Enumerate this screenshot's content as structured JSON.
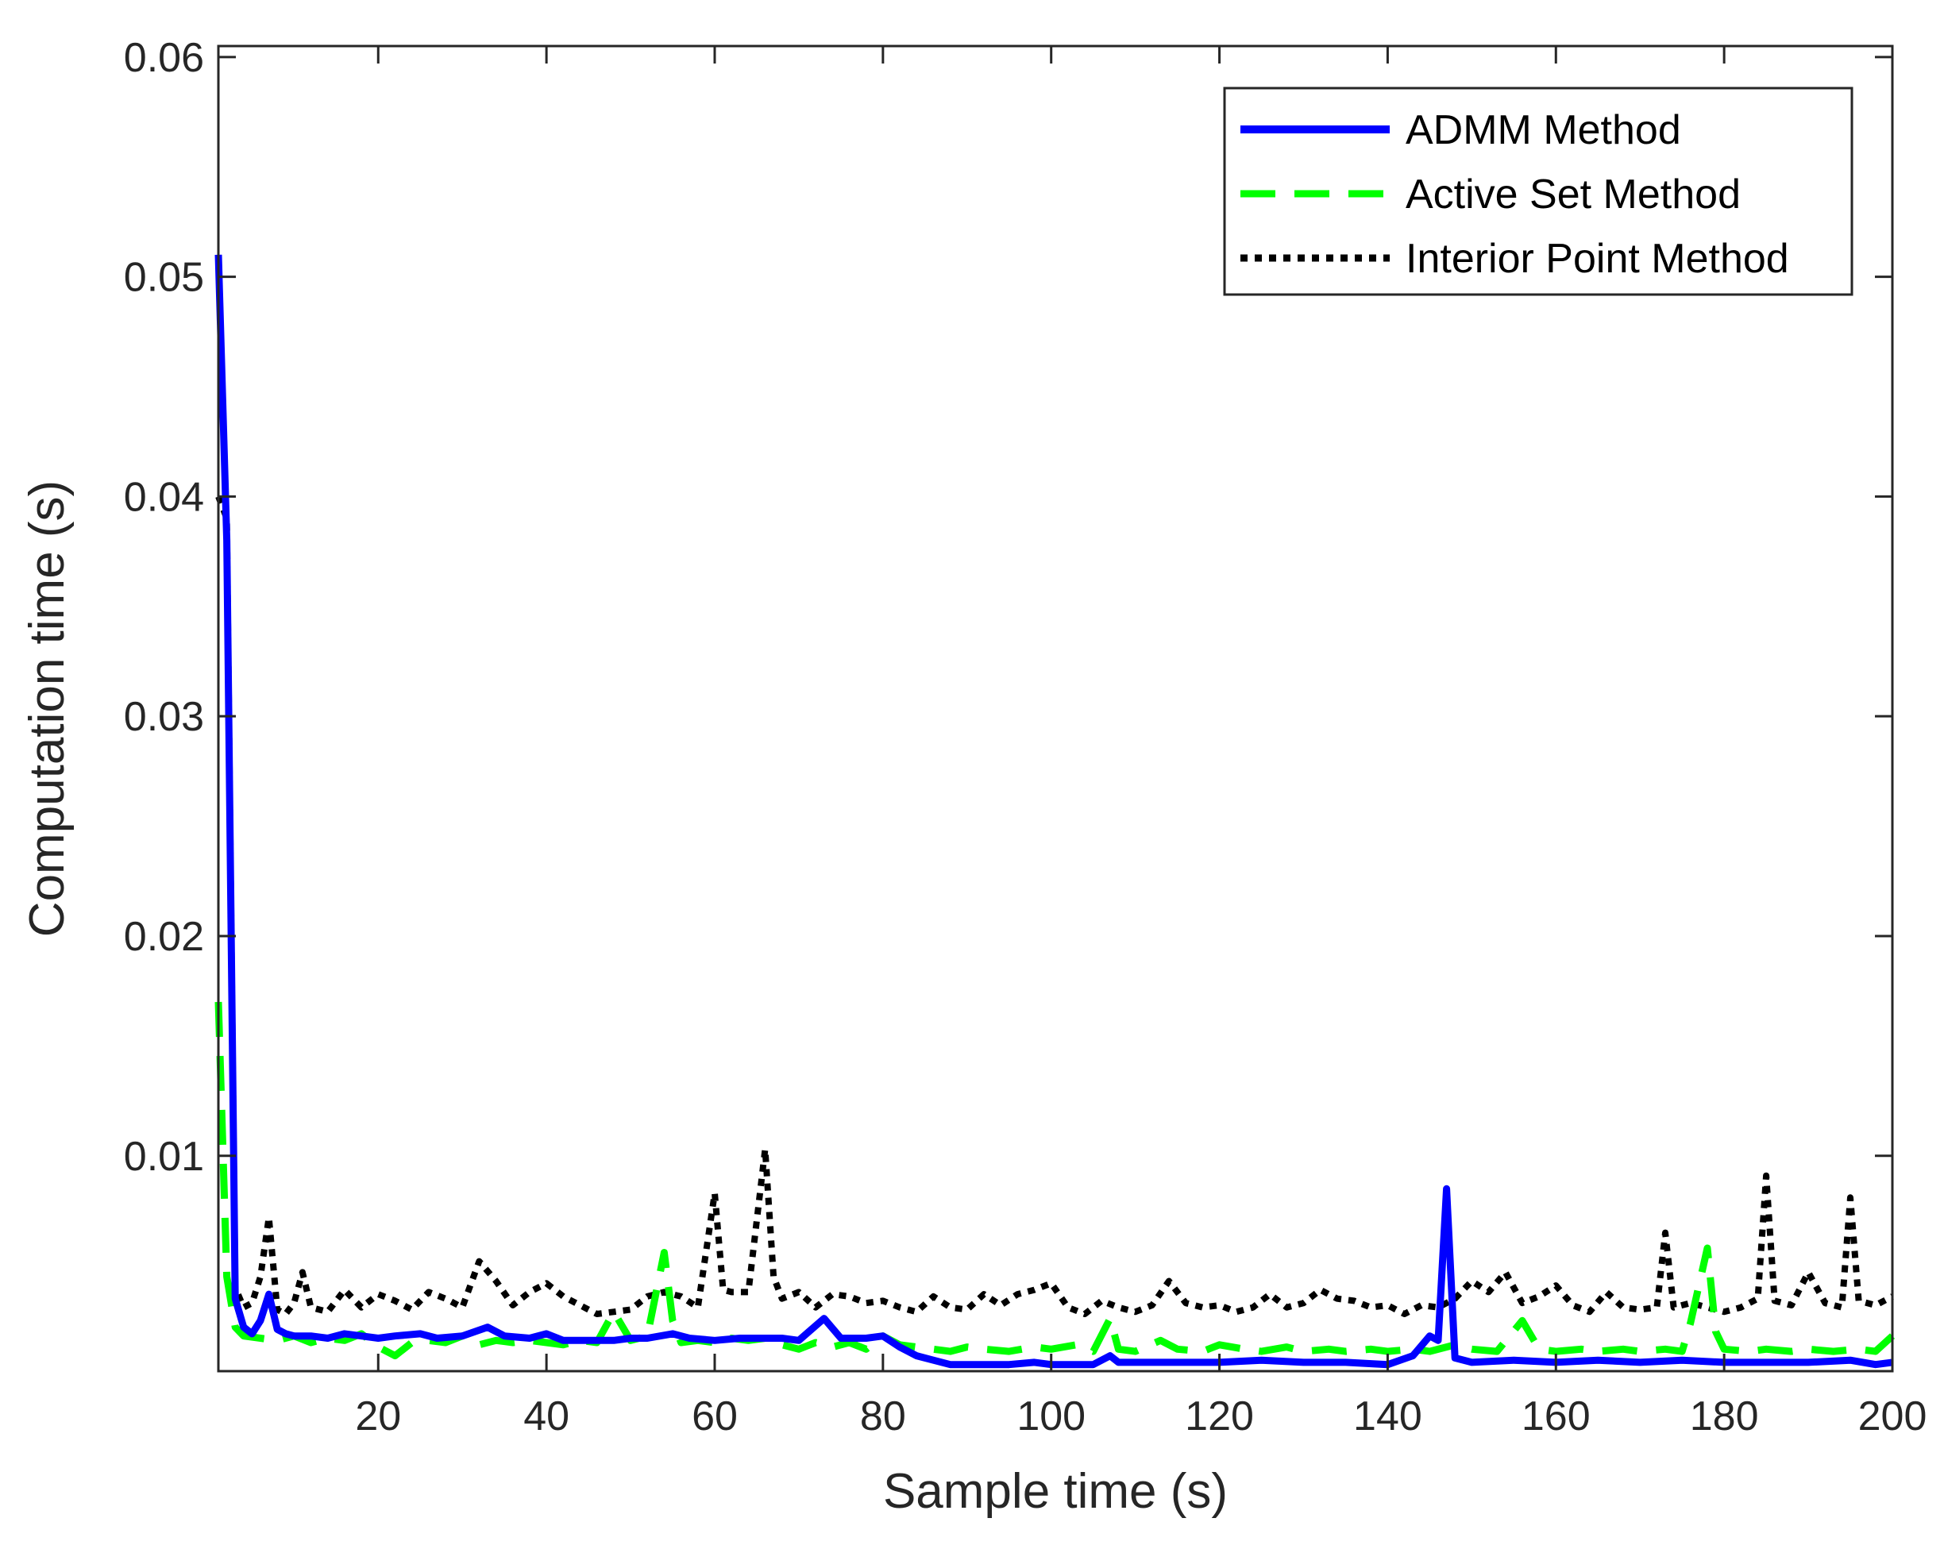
{
  "chart_data": {
    "type": "line",
    "title": "",
    "xlabel": "Sample time (s)",
    "ylabel": "Computation time (s)",
    "xlim": [
      1,
      200
    ],
    "ylim": [
      0.0002,
      0.0605
    ],
    "xticks": [
      20,
      40,
      60,
      80,
      100,
      120,
      140,
      160,
      180,
      200
    ],
    "yticks": [
      0.01,
      0.02,
      0.03,
      0.04,
      0.05,
      0.06
    ],
    "xtick_labels": [
      "20",
      "40",
      "60",
      "80",
      "100",
      "120",
      "140",
      "160",
      "180",
      "200"
    ],
    "ytick_labels": [
      "0.01",
      "0.02",
      "0.03",
      "0.04",
      "0.05",
      "0.06"
    ],
    "grid": false,
    "legend_position": "top-right",
    "series": [
      {
        "name": "ADMM Method",
        "color": "#0000ff",
        "style": "solid",
        "points": [
          [
            1,
            0.051
          ],
          [
            2,
            0.038
          ],
          [
            3,
            0.0035
          ],
          [
            4,
            0.0022
          ],
          [
            5,
            0.0019
          ],
          [
            6,
            0.0025
          ],
          [
            7,
            0.0037
          ],
          [
            8,
            0.0021
          ],
          [
            9,
            0.0019
          ],
          [
            10,
            0.0018
          ],
          [
            12,
            0.0018
          ],
          [
            14,
            0.0017
          ],
          [
            16,
            0.0019
          ],
          [
            18,
            0.0018
          ],
          [
            20,
            0.0017
          ],
          [
            22,
            0.0018
          ],
          [
            25,
            0.0019
          ],
          [
            27,
            0.0017
          ],
          [
            30,
            0.0018
          ],
          [
            33,
            0.0022
          ],
          [
            35,
            0.0018
          ],
          [
            38,
            0.0017
          ],
          [
            40,
            0.0019
          ],
          [
            42,
            0.0016
          ],
          [
            45,
            0.0016
          ],
          [
            48,
            0.0016
          ],
          [
            50,
            0.0017
          ],
          [
            52,
            0.0017
          ],
          [
            55,
            0.0019
          ],
          [
            57,
            0.0017
          ],
          [
            60,
            0.0016
          ],
          [
            63,
            0.0017
          ],
          [
            66,
            0.0017
          ],
          [
            68,
            0.0017
          ],
          [
            70,
            0.0016
          ],
          [
            73,
            0.0026
          ],
          [
            75,
            0.0017
          ],
          [
            78,
            0.0017
          ],
          [
            80,
            0.0018
          ],
          [
            82,
            0.0013
          ],
          [
            84,
            0.0009
          ],
          [
            86,
            0.0007
          ],
          [
            88,
            0.0005
          ],
          [
            90,
            0.0005
          ],
          [
            95,
            0.0005
          ],
          [
            98,
            0.0006
          ],
          [
            100,
            0.0005
          ],
          [
            105,
            0.0005
          ],
          [
            107,
            0.0009
          ],
          [
            108,
            0.0006
          ],
          [
            110,
            0.0006
          ],
          [
            115,
            0.0006
          ],
          [
            120,
            0.0006
          ],
          [
            125,
            0.0007
          ],
          [
            130,
            0.0006
          ],
          [
            135,
            0.0006
          ],
          [
            140,
            0.0005
          ],
          [
            143,
            0.0009
          ],
          [
            145,
            0.0018
          ],
          [
            146,
            0.0016
          ],
          [
            147,
            0.0085
          ],
          [
            148,
            0.0008
          ],
          [
            150,
            0.0006
          ],
          [
            155,
            0.0007
          ],
          [
            160,
            0.0006
          ],
          [
            165,
            0.0007
          ],
          [
            170,
            0.0006
          ],
          [
            175,
            0.0007
          ],
          [
            180,
            0.0006
          ],
          [
            185,
            0.0006
          ],
          [
            190,
            0.0006
          ],
          [
            195,
            0.0007
          ],
          [
            198,
            0.0005
          ],
          [
            200,
            0.0006
          ]
        ]
      },
      {
        "name": "Active Set Method",
        "color": "#00ff00",
        "style": "dashed",
        "points": [
          [
            1,
            0.017
          ],
          [
            2,
            0.0045
          ],
          [
            3,
            0.0022
          ],
          [
            4,
            0.0018
          ],
          [
            6,
            0.0017
          ],
          [
            8,
            0.0016
          ],
          [
            10,
            0.0018
          ],
          [
            12,
            0.0015
          ],
          [
            14,
            0.0017
          ],
          [
            16,
            0.0016
          ],
          [
            18,
            0.0019
          ],
          [
            20,
            0.0013
          ],
          [
            22,
            0.0009
          ],
          [
            24,
            0.0015
          ],
          [
            26,
            0.0016
          ],
          [
            28,
            0.0015
          ],
          [
            30,
            0.0018
          ],
          [
            32,
            0.0014
          ],
          [
            34,
            0.0016
          ],
          [
            36,
            0.0015
          ],
          [
            38,
            0.0016
          ],
          [
            40,
            0.0015
          ],
          [
            42,
            0.0014
          ],
          [
            44,
            0.0016
          ],
          [
            46,
            0.0015
          ],
          [
            48,
            0.0029
          ],
          [
            50,
            0.0016
          ],
          [
            52,
            0.0018
          ],
          [
            54,
            0.0056
          ],
          [
            55,
            0.0025
          ],
          [
            56,
            0.0015
          ],
          [
            58,
            0.0016
          ],
          [
            60,
            0.0015
          ],
          [
            62,
            0.0017
          ],
          [
            64,
            0.0016
          ],
          [
            66,
            0.0017
          ],
          [
            68,
            0.0014
          ],
          [
            70,
            0.0012
          ],
          [
            72,
            0.0015
          ],
          [
            74,
            0.0013
          ],
          [
            76,
            0.0015
          ],
          [
            78,
            0.0012
          ],
          [
            80,
            0.0018
          ],
          [
            82,
            0.0014
          ],
          [
            84,
            0.0013
          ],
          [
            86,
            0.0012
          ],
          [
            88,
            0.0011
          ],
          [
            90,
            0.0013
          ],
          [
            92,
            0.0012
          ],
          [
            95,
            0.0011
          ],
          [
            98,
            0.0013
          ],
          [
            100,
            0.0012
          ],
          [
            103,
            0.0014
          ],
          [
            105,
            0.0011
          ],
          [
            107,
            0.0026
          ],
          [
            108,
            0.0012
          ],
          [
            110,
            0.0011
          ],
          [
            113,
            0.0016
          ],
          [
            115,
            0.0012
          ],
          [
            118,
            0.0011
          ],
          [
            120,
            0.0014
          ],
          [
            123,
            0.0012
          ],
          [
            125,
            0.0011
          ],
          [
            128,
            0.0013
          ],
          [
            130,
            0.0011
          ],
          [
            133,
            0.0012
          ],
          [
            135,
            0.0011
          ],
          [
            138,
            0.0012
          ],
          [
            140,
            0.0011
          ],
          [
            143,
            0.0012
          ],
          [
            145,
            0.0011
          ],
          [
            148,
            0.0014
          ],
          [
            150,
            0.0012
          ],
          [
            153,
            0.0011
          ],
          [
            156,
            0.0025
          ],
          [
            158,
            0.0012
          ],
          [
            160,
            0.0011
          ],
          [
            163,
            0.0012
          ],
          [
            165,
            0.0011
          ],
          [
            168,
            0.0012
          ],
          [
            170,
            0.0011
          ],
          [
            173,
            0.0012
          ],
          [
            175,
            0.0011
          ],
          [
            176,
            0.0024
          ],
          [
            178,
            0.0058
          ],
          [
            179,
            0.002
          ],
          [
            180,
            0.0012
          ],
          [
            183,
            0.0011
          ],
          [
            185,
            0.0012
          ],
          [
            188,
            0.0011
          ],
          [
            190,
            0.0012
          ],
          [
            193,
            0.0011
          ],
          [
            196,
            0.0012
          ],
          [
            198,
            0.0011
          ],
          [
            200,
            0.0018
          ]
        ]
      },
      {
        "name": "Interior Point Method",
        "color": "#000000",
        "style": "dotted",
        "points": [
          [
            1,
            0.04
          ],
          [
            2,
            0.039
          ],
          [
            3,
            0.004
          ],
          [
            4,
            0.0031
          ],
          [
            5,
            0.0033
          ],
          [
            6,
            0.0045
          ],
          [
            7,
            0.0072
          ],
          [
            8,
            0.003
          ],
          [
            9,
            0.0028
          ],
          [
            10,
            0.0033
          ],
          [
            11,
            0.0047
          ],
          [
            12,
            0.0031
          ],
          [
            14,
            0.0029
          ],
          [
            16,
            0.0039
          ],
          [
            18,
            0.0031
          ],
          [
            20,
            0.0037
          ],
          [
            22,
            0.0034
          ],
          [
            24,
            0.003
          ],
          [
            26,
            0.0038
          ],
          [
            28,
            0.0035
          ],
          [
            30,
            0.0031
          ],
          [
            32,
            0.0052
          ],
          [
            34,
            0.0043
          ],
          [
            36,
            0.0032
          ],
          [
            38,
            0.0038
          ],
          [
            40,
            0.0042
          ],
          [
            42,
            0.0036
          ],
          [
            44,
            0.0032
          ],
          [
            46,
            0.0028
          ],
          [
            48,
            0.0029
          ],
          [
            50,
            0.003
          ],
          [
            52,
            0.0036
          ],
          [
            54,
            0.0038
          ],
          [
            56,
            0.0036
          ],
          [
            58,
            0.0031
          ],
          [
            60,
            0.0083
          ],
          [
            61,
            0.0039
          ],
          [
            62,
            0.0038
          ],
          [
            64,
            0.0038
          ],
          [
            66,
            0.0103
          ],
          [
            67,
            0.0045
          ],
          [
            68,
            0.0035
          ],
          [
            70,
            0.0038
          ],
          [
            72,
            0.0031
          ],
          [
            74,
            0.0037
          ],
          [
            76,
            0.0036
          ],
          [
            78,
            0.0033
          ],
          [
            80,
            0.0034
          ],
          [
            82,
            0.0031
          ],
          [
            84,
            0.0029
          ],
          [
            86,
            0.0036
          ],
          [
            88,
            0.0031
          ],
          [
            90,
            0.003
          ],
          [
            92,
            0.0037
          ],
          [
            94,
            0.0032
          ],
          [
            96,
            0.0037
          ],
          [
            98,
            0.0039
          ],
          [
            100,
            0.0042
          ],
          [
            102,
            0.0031
          ],
          [
            104,
            0.0028
          ],
          [
            106,
            0.0034
          ],
          [
            108,
            0.0031
          ],
          [
            110,
            0.0029
          ],
          [
            112,
            0.0032
          ],
          [
            114,
            0.0043
          ],
          [
            116,
            0.0033
          ],
          [
            118,
            0.0031
          ],
          [
            120,
            0.0032
          ],
          [
            122,
            0.0029
          ],
          [
            124,
            0.0031
          ],
          [
            126,
            0.0037
          ],
          [
            128,
            0.0031
          ],
          [
            130,
            0.0033
          ],
          [
            132,
            0.0039
          ],
          [
            134,
            0.0035
          ],
          [
            136,
            0.0034
          ],
          [
            138,
            0.0031
          ],
          [
            140,
            0.0032
          ],
          [
            142,
            0.0028
          ],
          [
            144,
            0.0032
          ],
          [
            146,
            0.0031
          ],
          [
            148,
            0.0035
          ],
          [
            150,
            0.0043
          ],
          [
            152,
            0.0038
          ],
          [
            154,
            0.0047
          ],
          [
            156,
            0.0033
          ],
          [
            158,
            0.0036
          ],
          [
            160,
            0.0041
          ],
          [
            162,
            0.0032
          ],
          [
            164,
            0.0029
          ],
          [
            166,
            0.0038
          ],
          [
            168,
            0.0031
          ],
          [
            170,
            0.003
          ],
          [
            172,
            0.0031
          ],
          [
            173,
            0.0065
          ],
          [
            174,
            0.0031
          ],
          [
            176,
            0.0033
          ],
          [
            178,
            0.0031
          ],
          [
            180,
            0.0029
          ],
          [
            182,
            0.0031
          ],
          [
            184,
            0.0035
          ],
          [
            185,
            0.0091
          ],
          [
            186,
            0.0034
          ],
          [
            188,
            0.0032
          ],
          [
            190,
            0.0047
          ],
          [
            192,
            0.0033
          ],
          [
            194,
            0.0031
          ],
          [
            195,
            0.0081
          ],
          [
            196,
            0.0034
          ],
          [
            198,
            0.0032
          ],
          [
            200,
            0.0036
          ]
        ]
      }
    ]
  }
}
